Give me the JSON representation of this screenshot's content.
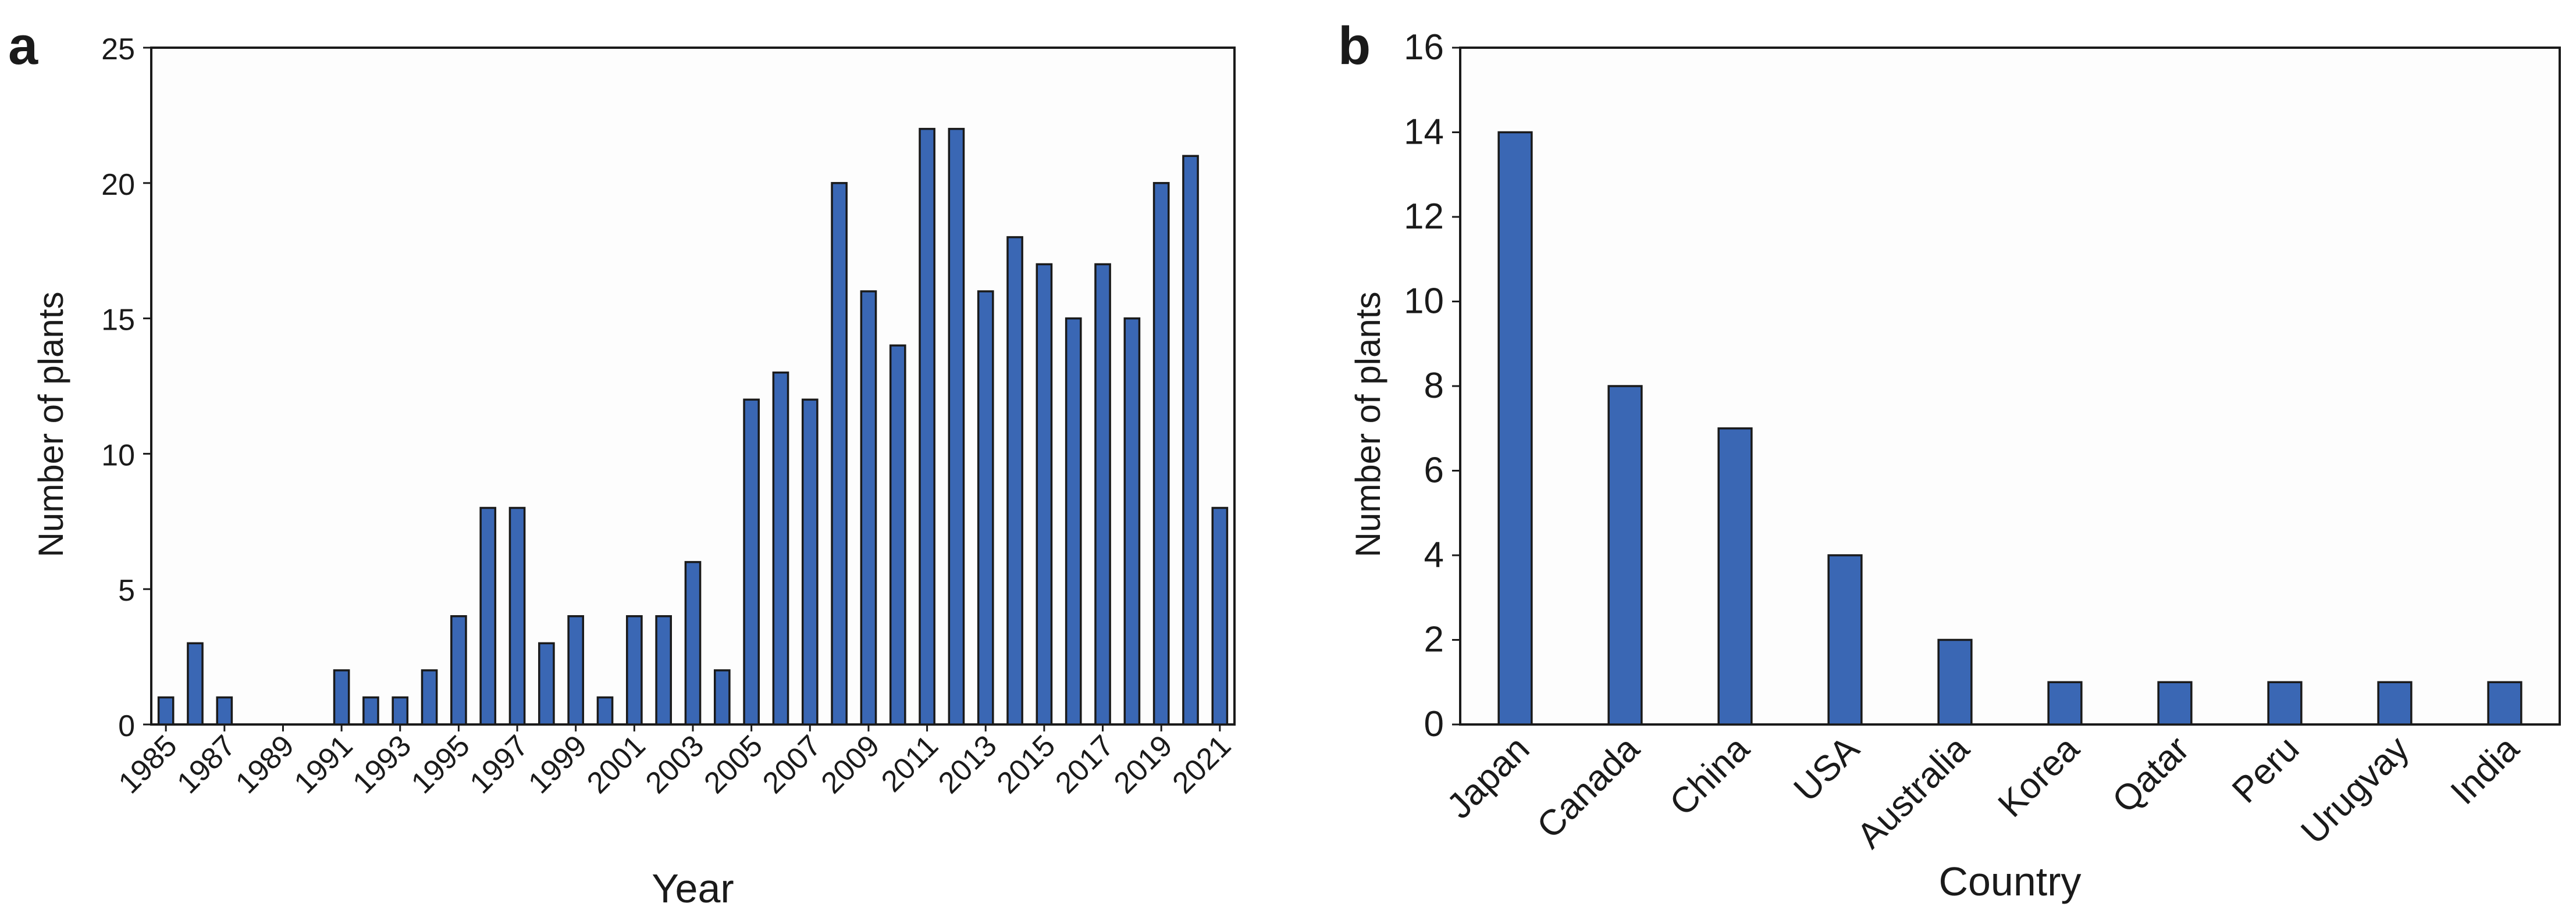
{
  "colors": {
    "bar": "#3a67b4",
    "axis": "#1a1a1a",
    "grid": "#e2e2e2"
  },
  "chart_data": [
    {
      "panel_label": "a",
      "type": "bar",
      "xlabel": "Year",
      "ylabel": "Number of plants",
      "ylim": [
        0,
        25
      ],
      "yticks": [
        0,
        5,
        10,
        15,
        20,
        25
      ],
      "grid": true,
      "categories": [
        "1985",
        "1986",
        "1987",
        "1988",
        "1989",
        "1990",
        "1991",
        "1992",
        "1993",
        "1994",
        "1995",
        "1996",
        "1997",
        "1998",
        "1999",
        "2000",
        "2001",
        "2002",
        "2003",
        "2004",
        "2005",
        "2006",
        "2007",
        "2008",
        "2009",
        "2010",
        "2011",
        "2012",
        "2013",
        "2014",
        "2015",
        "2016",
        "2017",
        "2018",
        "2019",
        "2020",
        "2021"
      ],
      "tick_labels": [
        "1985",
        "1987",
        "1989",
        "1991",
        "1993",
        "1995",
        "1997",
        "1999",
        "2001",
        "2003",
        "2005",
        "2007",
        "2009",
        "2011",
        "2013",
        "2015",
        "2017",
        "2019",
        "2021"
      ],
      "values": [
        1,
        3,
        1,
        0,
        0,
        0,
        2,
        1,
        1,
        2,
        4,
        8,
        8,
        3,
        4,
        1,
        4,
        4,
        6,
        2,
        12,
        13,
        12,
        20,
        16,
        14,
        22,
        22,
        16,
        18,
        17,
        15,
        17,
        15,
        20,
        21,
        8
      ]
    },
    {
      "panel_label": "b",
      "type": "bar",
      "xlabel": "Country",
      "ylabel": "Number of plants",
      "ylim": [
        0,
        16
      ],
      "yticks": [
        0,
        2,
        4,
        6,
        8,
        10,
        12,
        14,
        16
      ],
      "grid": true,
      "categories": [
        "Japan",
        "Canada",
        "China",
        "USA",
        "Australia",
        "Korea",
        "Qatar",
        "Peru",
        "Urugvay",
        "India"
      ],
      "values": [
        14,
        8,
        7,
        4,
        2,
        1,
        1,
        1,
        1,
        1
      ]
    }
  ]
}
